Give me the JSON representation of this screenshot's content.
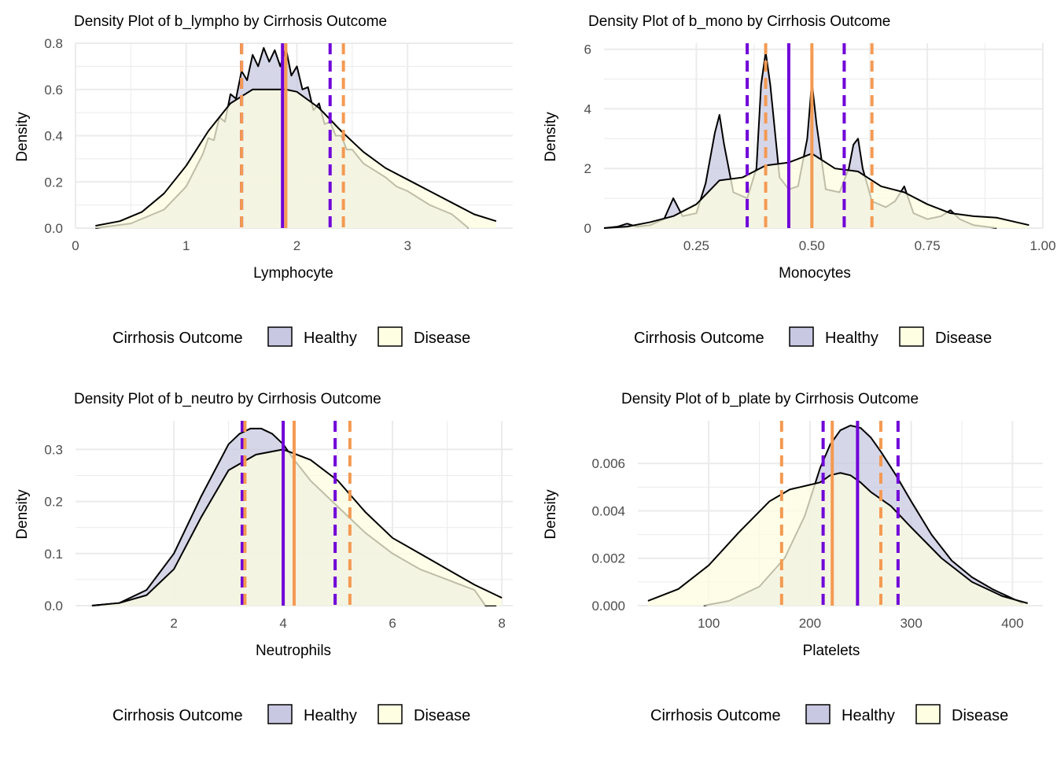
{
  "legend": {
    "title": "Cirrhosis Outcome",
    "items": [
      {
        "label": "Healthy",
        "color": "#c8c8e2"
      },
      {
        "label": "Disease",
        "color": "#fefee3"
      }
    ]
  },
  "colors": {
    "healthy_fill": "#c8c8e2",
    "disease_fill": "#fdfde0",
    "healthy_line": "#7000d8",
    "disease_line": "#f49a52",
    "grid": "#ebebeb"
  },
  "chart_data": [
    {
      "type": "area",
      "title": "Density Plot of b_lympho by Cirrhosis Outcome",
      "xlabel": "Lymphocyte",
      "ylabel": "Density",
      "xlim": [
        0,
        3.95
      ],
      "ylim": [
        0,
        0.8
      ],
      "xticks": [
        0,
        1,
        2,
        3
      ],
      "xtick_labels": [
        "0",
        "1",
        "2",
        "3"
      ],
      "yticks": [
        0,
        0.2,
        0.4,
        0.6,
        0.8
      ],
      "ytick_labels": [
        "0.0",
        "0.2",
        "0.4",
        "0.6",
        "0.8"
      ],
      "series": [
        {
          "name": "Healthy",
          "x": [
            0.18,
            0.5,
            0.8,
            1.0,
            1.15,
            1.2,
            1.25,
            1.3,
            1.35,
            1.4,
            1.45,
            1.5,
            1.55,
            1.6,
            1.65,
            1.7,
            1.75,
            1.8,
            1.85,
            1.9,
            1.95,
            2.0,
            2.05,
            2.1,
            2.15,
            2.2,
            2.25,
            2.3,
            2.35,
            2.4,
            2.45,
            2.5,
            2.55,
            2.6,
            2.7,
            2.8,
            2.9,
            3.0,
            3.2,
            3.4,
            3.55
          ],
          "y": [
            0.0,
            0.02,
            0.08,
            0.18,
            0.32,
            0.39,
            0.38,
            0.48,
            0.46,
            0.58,
            0.56,
            0.68,
            0.64,
            0.75,
            0.7,
            0.78,
            0.72,
            0.77,
            0.7,
            0.78,
            0.66,
            0.7,
            0.6,
            0.61,
            0.51,
            0.54,
            0.45,
            0.46,
            0.4,
            0.4,
            0.34,
            0.34,
            0.31,
            0.28,
            0.25,
            0.22,
            0.18,
            0.16,
            0.1,
            0.06,
            0.0
          ]
        },
        {
          "name": "Disease",
          "x": [
            0.18,
            0.4,
            0.6,
            0.8,
            1.0,
            1.2,
            1.4,
            1.6,
            1.8,
            1.9,
            2.0,
            2.2,
            2.4,
            2.6,
            2.8,
            3.0,
            3.2,
            3.4,
            3.6,
            3.8
          ],
          "y": [
            0.01,
            0.03,
            0.07,
            0.15,
            0.27,
            0.42,
            0.54,
            0.6,
            0.6,
            0.6,
            0.59,
            0.52,
            0.42,
            0.33,
            0.26,
            0.21,
            0.16,
            0.11,
            0.06,
            0.03
          ]
        }
      ],
      "vlines": [
        {
          "series": "Healthy",
          "stat": "mean",
          "x": 1.87
        },
        {
          "series": "Healthy",
          "stat": "q1",
          "x": 1.5
        },
        {
          "series": "Healthy",
          "stat": "q3",
          "x": 2.3
        },
        {
          "series": "Disease",
          "stat": "mean",
          "x": 1.9
        },
        {
          "series": "Disease",
          "stat": "q1",
          "x": 1.5
        },
        {
          "series": "Disease",
          "stat": "q3",
          "x": 2.42
        }
      ]
    },
    {
      "type": "area",
      "title": "Density Plot of b_mono by Cirrhosis Outcome",
      "xlabel": "Monocytes",
      "ylabel": "Density",
      "xlim": [
        0.05,
        1.0
      ],
      "ylim": [
        0,
        6.2
      ],
      "xticks": [
        0.25,
        0.5,
        0.75,
        1.0
      ],
      "xtick_labels": [
        "0.25",
        "0.50",
        "0.75",
        "1.00"
      ],
      "yticks": [
        0,
        2,
        4,
        6
      ],
      "ytick_labels": [
        "0",
        "2",
        "4",
        "6"
      ],
      "series": [
        {
          "name": "Healthy",
          "x": [
            0.05,
            0.08,
            0.1,
            0.12,
            0.15,
            0.18,
            0.2,
            0.22,
            0.25,
            0.27,
            0.29,
            0.3,
            0.31,
            0.33,
            0.36,
            0.38,
            0.39,
            0.4,
            0.41,
            0.43,
            0.45,
            0.47,
            0.49,
            0.5,
            0.51,
            0.53,
            0.56,
            0.58,
            0.59,
            0.6,
            0.61,
            0.63,
            0.66,
            0.68,
            0.7,
            0.72,
            0.75,
            0.78,
            0.8,
            0.82,
            0.85,
            0.9
          ],
          "y": [
            0.0,
            0.05,
            0.15,
            0.05,
            0.1,
            0.3,
            1.0,
            0.4,
            0.5,
            1.5,
            3.2,
            3.8,
            2.8,
            1.2,
            1.0,
            2.0,
            4.8,
            5.9,
            4.8,
            1.7,
            1.3,
            1.4,
            3.0,
            4.9,
            3.5,
            1.3,
            1.2,
            2.0,
            2.8,
            3.0,
            2.0,
            0.9,
            0.7,
            0.9,
            1.4,
            0.5,
            0.3,
            0.4,
            0.6,
            0.3,
            0.1,
            0.0
          ]
        },
        {
          "name": "Disease",
          "x": [
            0.05,
            0.1,
            0.15,
            0.2,
            0.25,
            0.3,
            0.35,
            0.4,
            0.45,
            0.5,
            0.55,
            0.6,
            0.65,
            0.7,
            0.75,
            0.8,
            0.85,
            0.9,
            0.97
          ],
          "y": [
            0.0,
            0.05,
            0.2,
            0.4,
            0.8,
            1.6,
            1.7,
            2.1,
            2.2,
            2.5,
            2.0,
            1.9,
            1.4,
            1.2,
            0.8,
            0.5,
            0.4,
            0.35,
            0.1
          ]
        }
      ],
      "vlines": [
        {
          "series": "Healthy",
          "stat": "mean",
          "x": 0.45
        },
        {
          "series": "Healthy",
          "stat": "q1",
          "x": 0.36
        },
        {
          "series": "Healthy",
          "stat": "q3",
          "x": 0.57
        },
        {
          "series": "Disease",
          "stat": "mean",
          "x": 0.5
        },
        {
          "series": "Disease",
          "stat": "q1",
          "x": 0.4
        },
        {
          "series": "Disease",
          "stat": "q3",
          "x": 0.63
        }
      ]
    },
    {
      "type": "area",
      "title": "Density Plot of b_neutro by Cirrhosis Outcome",
      "xlabel": "Neutrophils",
      "ylabel": "Density",
      "xlim": [
        0.2,
        8.2
      ],
      "ylim": [
        0,
        0.355
      ],
      "xticks": [
        2,
        4,
        6,
        8
      ],
      "xtick_labels": [
        "2",
        "4",
        "6",
        "8"
      ],
      "yticks": [
        0,
        0.1,
        0.2,
        0.3
      ],
      "ytick_labels": [
        "0.0",
        "0.1",
        "0.2",
        "0.3"
      ],
      "series": [
        {
          "name": "Healthy",
          "x": [
            0.5,
            1.0,
            1.5,
            2.0,
            2.5,
            3.0,
            3.2,
            3.4,
            3.6,
            3.8,
            4.0,
            4.2,
            4.5,
            5.0,
            5.5,
            6.0,
            6.5,
            7.0,
            7.5,
            7.7,
            7.9
          ],
          "y": [
            0.0,
            0.005,
            0.03,
            0.1,
            0.21,
            0.31,
            0.33,
            0.34,
            0.34,
            0.33,
            0.31,
            0.28,
            0.24,
            0.19,
            0.14,
            0.1,
            0.07,
            0.05,
            0.03,
            0.0,
            0.0
          ]
        },
        {
          "name": "Disease",
          "x": [
            0.5,
            1.0,
            1.5,
            2.0,
            2.5,
            3.0,
            3.5,
            4.0,
            4.5,
            5.0,
            5.5,
            6.0,
            6.5,
            7.0,
            7.5,
            8.0
          ],
          "y": [
            0.0,
            0.005,
            0.02,
            0.07,
            0.17,
            0.26,
            0.29,
            0.3,
            0.28,
            0.24,
            0.18,
            0.13,
            0.1,
            0.07,
            0.04,
            0.015
          ]
        }
      ],
      "vlines": [
        {
          "series": "Healthy",
          "stat": "mean",
          "x": 4.0
        },
        {
          "series": "Healthy",
          "stat": "q1",
          "x": 3.25
        },
        {
          "series": "Healthy",
          "stat": "q3",
          "x": 4.95
        },
        {
          "series": "Disease",
          "stat": "mean",
          "x": 4.2
        },
        {
          "series": "Disease",
          "stat": "q1",
          "x": 3.3
        },
        {
          "series": "Disease",
          "stat": "q3",
          "x": 5.22
        }
      ]
    },
    {
      "type": "area",
      "title": "Density Plot of b_plate by Cirrhosis Outcome",
      "xlabel": "Platelets",
      "ylabel": "Density",
      "xlim": [
        30,
        430
      ],
      "ylim": [
        0,
        0.0078
      ],
      "xticks": [
        100,
        200,
        300,
        400
      ],
      "xtick_labels": [
        "100",
        "200",
        "300",
        "400"
      ],
      "yticks": [
        0,
        0.002,
        0.004,
        0.006
      ],
      "ytick_labels": [
        "0.000",
        "0.002",
        "0.004",
        "0.006"
      ],
      "series": [
        {
          "name": "Healthy",
          "x": [
            95,
            120,
            150,
            175,
            195,
            210,
            220,
            230,
            240,
            250,
            260,
            270,
            285,
            300,
            320,
            340,
            360,
            380,
            395,
            410
          ],
          "y": [
            0.0,
            0.0002,
            0.0008,
            0.002,
            0.0038,
            0.0058,
            0.0068,
            0.0074,
            0.0076,
            0.0075,
            0.0071,
            0.0065,
            0.0055,
            0.0044,
            0.003,
            0.0019,
            0.0012,
            0.0007,
            0.0004,
            0.0001
          ]
        },
        {
          "name": "Disease",
          "x": [
            40,
            70,
            100,
            130,
            160,
            180,
            200,
            210,
            220,
            230,
            240,
            250,
            260,
            280,
            300,
            330,
            360,
            390,
            415
          ],
          "y": [
            0.0002,
            0.0007,
            0.0017,
            0.0031,
            0.0044,
            0.0049,
            0.0051,
            0.0052,
            0.0055,
            0.0056,
            0.0055,
            0.0052,
            0.0048,
            0.0042,
            0.0033,
            0.002,
            0.001,
            0.0004,
            0.0001
          ]
        }
      ],
      "vlines": [
        {
          "series": "Healthy",
          "stat": "mean",
          "x": 247
        },
        {
          "series": "Healthy",
          "stat": "q1",
          "x": 213
        },
        {
          "series": "Healthy",
          "stat": "q3",
          "x": 287
        },
        {
          "series": "Disease",
          "stat": "mean",
          "x": 222
        },
        {
          "series": "Disease",
          "stat": "q1",
          "x": 172
        },
        {
          "series": "Disease",
          "stat": "q3",
          "x": 270
        }
      ]
    }
  ]
}
